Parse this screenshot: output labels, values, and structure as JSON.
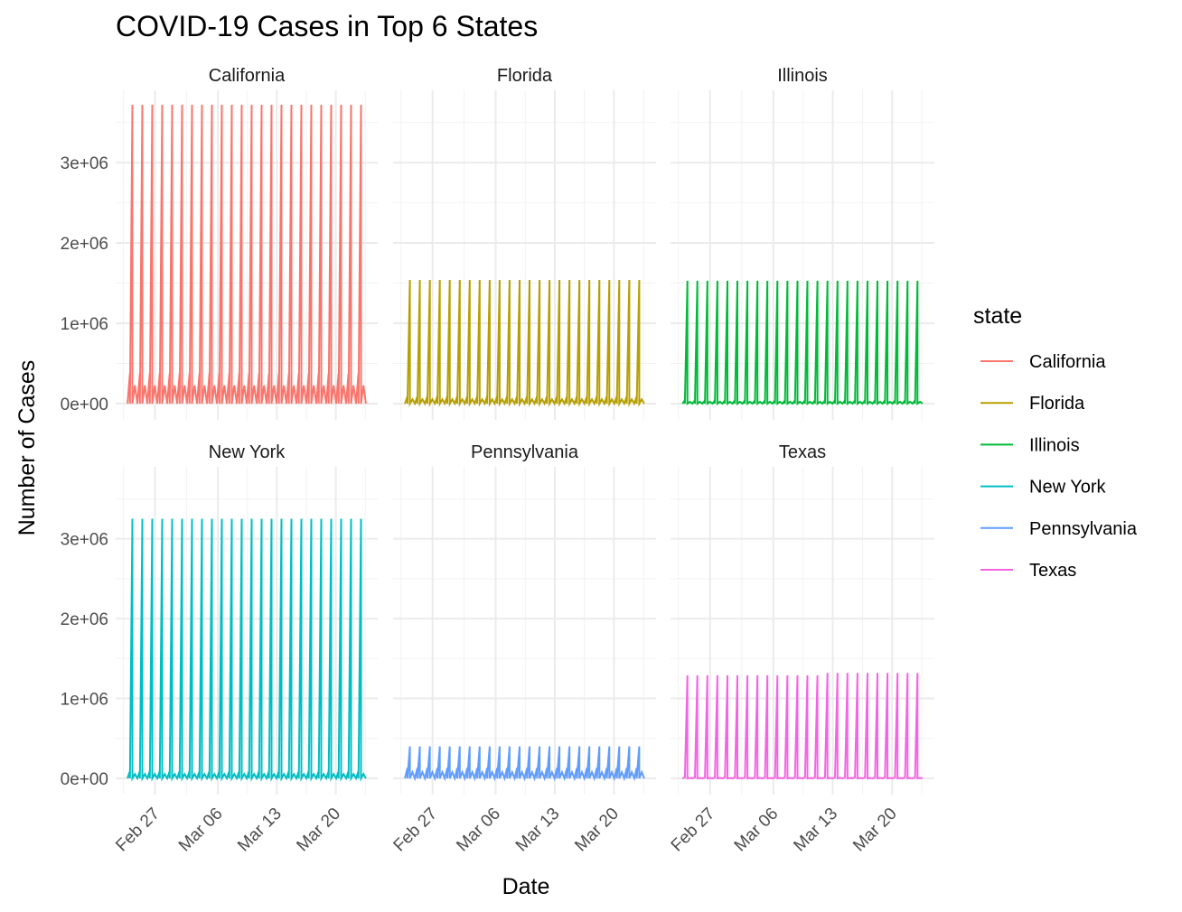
{
  "chart_data": {
    "type": "line",
    "title": "COVID-19 Cases in Top 6 States",
    "xlabel": "Date",
    "ylabel": "Number of Cases",
    "x_ticks": [
      "Feb 27",
      "Mar 06",
      "Mar 13",
      "Mar 20"
    ],
    "y_ticks": [
      "0e+00",
      "1e+06",
      "2e+06",
      "3e+06"
    ],
    "ylim": [
      0,
      3900000
    ],
    "grid": true,
    "legend": {
      "title": "state",
      "position": "right"
    },
    "facets": [
      {
        "name": "California",
        "color": "#F8766D",
        "peak": 3720000,
        "low_peak": 380000
      },
      {
        "name": "Florida",
        "color": "#B79F00",
        "peak": 1540000,
        "low_peak": 90000
      },
      {
        "name": "Illinois",
        "color": "#00BA38",
        "peak": 1530000,
        "low_peak": 40000
      },
      {
        "name": "New York",
        "color": "#00BFC4",
        "peak": 3250000,
        "low_peak": 90000
      },
      {
        "name": "Pennsylvania",
        "color": "#619CFF",
        "peak": 400000,
        "low_peak": 130000
      },
      {
        "name": "Texas",
        "color": "#F564E3",
        "peak": 1290000,
        "low_peak": 10000,
        "peak_late": 1320000
      }
    ]
  }
}
